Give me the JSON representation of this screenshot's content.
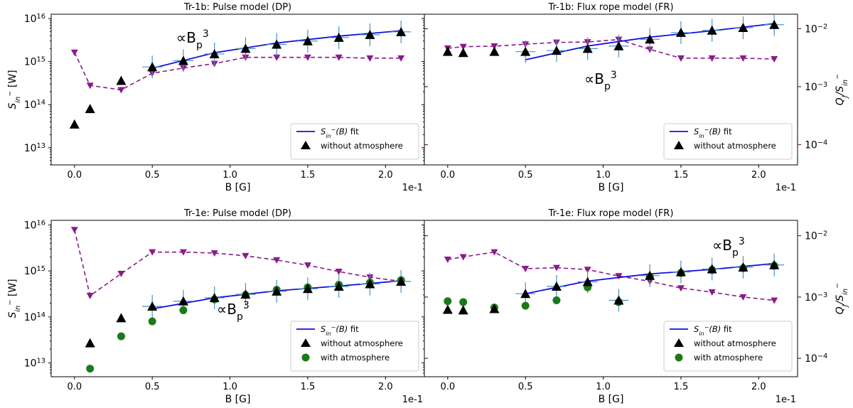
{
  "figure": {
    "colors": {
      "fit": "#1010dd",
      "triangle": "#000000",
      "circle": "#1a7a1a",
      "ratio": "#8b1a8b",
      "errorbar": "#4a90c8",
      "annotation": "#1010ee"
    },
    "shared": {
      "xlabel": "B [G]",
      "x_multiplier": "1e-1",
      "xlim": [
        -0.15,
        2.25
      ],
      "xticks": [
        "0.0",
        "0.5",
        "1.0",
        "1.5",
        "2.0"
      ],
      "ylabel_main": "S_in^- [W]",
      "ylabel_main_text": "S",
      "ylabel_main_sub": "in",
      "ylabel_main_sup": "−",
      "ylabel_main_unit": " [W]",
      "ylabel_right_text": "Q",
      "ylabel_right_sub_q": "J",
      "ylabel_right_mid": "/S",
      "ylabel_right_sub_s": "in",
      "ylabel_right_sup_s": "−",
      "left_yticks": [
        "10^13",
        "10^14",
        "10^15",
        "10^16"
      ],
      "right_yticks": [
        "10^-4",
        "10^-3",
        "10^-2"
      ],
      "tick_base": "10",
      "left_tick_exps": [
        "13",
        "14",
        "15",
        "16"
      ],
      "right_tick_exps": [
        "−4",
        "−3",
        "−2"
      ],
      "legend_fit_prefix": "S",
      "legend_fit_sub": "in",
      "legend_fit_sup": "−",
      "legend_fit_suffix": "(B) fit",
      "legend_without": "without atmosphere",
      "legend_with": "with atmosphere",
      "annotation_prefix": "∝B",
      "annotation_sub": "p",
      "annotation_sup": "3"
    }
  },
  "chart_data": [
    {
      "type": "scatter",
      "title": "Tr-1b: Pulse model (DP)",
      "ylim_left_log10": [
        12.6,
        16.1
      ],
      "ylim_right_log10": [
        -4.35,
        -1.75
      ],
      "x": [
        0.0,
        0.1,
        0.3,
        0.5,
        0.7,
        0.9,
        1.1,
        1.3,
        1.5,
        1.7,
        1.9,
        2.1
      ],
      "without_atmosphere": [
        35000000000000.0,
        80000000000000.0,
        360000000000000.0,
        750000000000000.0,
        1050000000000000.0,
        1500000000000000.0,
        2000000000000000.0,
        2500000000000000.0,
        3000000000000000.0,
        3600000000000000.0,
        4200000000000000.0,
        4900000000000000.0
      ],
      "fit": {
        "x": [
          0.5,
          2.1
        ],
        "points": [
          [
            0.5,
            700000000000000.0
          ],
          [
            0.9,
            1600000000000000.0
          ],
          [
            1.3,
            2700000000000000.0
          ],
          [
            1.7,
            3900000000000000.0
          ],
          [
            2.1,
            5200000000000000.0
          ]
        ]
      },
      "qj_ratio": [
        0.0039,
        0.00105,
        0.00088,
        0.0017,
        0.0021,
        0.0025,
        0.0032,
        0.0032,
        0.0032,
        0.0032,
        0.0031,
        0.0031
      ],
      "annotation": "upper-left"
    },
    {
      "type": "scatter",
      "title": "Tr-1b: Flux rope model (FR)",
      "ylim_left_log10": [
        12.6,
        16.1
      ],
      "ylim_right_log10": [
        -4.35,
        -1.75
      ],
      "x": [
        0.0,
        0.1,
        0.3,
        0.5,
        0.7,
        0.9,
        1.1,
        1.3,
        1.5,
        1.7,
        1.9,
        2.1
      ],
      "without_atmosphere": [
        1700000000000000.0,
        1600000000000000.0,
        1700000000000000.0,
        1700000000000000.0,
        1800000000000000.0,
        2000000000000000.0,
        2300000000000000.0,
        3300000000000000.0,
        4700000000000000.0,
        5300000000000000.0,
        6100000000000000.0,
        7200000000000000.0
      ],
      "fit": {
        "x": [
          0.5,
          2.1
        ],
        "points": [
          [
            0.5,
            1100000000000000.0
          ],
          [
            0.9,
            2300000000000000.0
          ],
          [
            1.3,
            3700000000000000.0
          ],
          [
            1.7,
            5200000000000000.0
          ],
          [
            2.1,
            7600000000000000.0
          ]
        ]
      },
      "qj_ratio": [
        0.0046,
        0.0049,
        0.005,
        0.0054,
        0.0058,
        0.0059,
        0.0065,
        0.0044,
        0.0031,
        0.0031,
        0.0031,
        0.003
      ],
      "annotation": "middle-center"
    },
    {
      "type": "scatter",
      "title": "Tr-1e: Pulse model (DP)",
      "ylim_left_log10": [
        12.7,
        16.1
      ],
      "ylim_right_log10": [
        -4.3,
        -1.75
      ],
      "x": [
        0.0,
        0.1,
        0.3,
        0.5,
        0.7,
        0.9,
        1.1,
        1.3,
        1.5,
        1.7,
        1.9,
        2.1
      ],
      "without_atmosphere": [
        null,
        27000000000000.0,
        95000000000000.0,
        170000000000000.0,
        220000000000000.0,
        260000000000000.0,
        310000000000000.0,
        360000000000000.0,
        410000000000000.0,
        460000000000000.0,
        520000000000000.0,
        590000000000000.0
      ],
      "with_atmosphere": [
        null,
        7500000000000.0,
        38000000000000.0,
        80000000000000.0,
        140000000000000.0,
        240000000000000.0,
        300000000000000.0,
        390000000000000.0,
        440000000000000.0,
        500000000000000.0,
        560000000000000.0,
        630000000000000.0
      ],
      "fit": {
        "x": [
          0.5,
          2.1
        ],
        "points": [
          [
            0.5,
            150000000000000.0
          ],
          [
            0.9,
            260000000000000.0
          ],
          [
            1.3,
            370000000000000.0
          ],
          [
            1.7,
            470000000000000.0
          ],
          [
            2.1,
            610000000000000.0
          ]
        ]
      },
      "qj_ratio": [
        0.0125,
        0.00105,
        0.0024,
        0.0054,
        0.0054,
        0.0052,
        0.0047,
        0.004,
        0.0033,
        0.0026,
        0.0021,
        0.0018
      ],
      "annotation": "lower-center"
    },
    {
      "type": "scatter",
      "title": "Tr-1e: Flux rope model (FR)",
      "ylim_left_log10": [
        12.7,
        16.1
      ],
      "ylim_right_log10": [
        -4.3,
        -1.75
      ],
      "x": [
        0.0,
        0.1,
        0.3,
        0.5,
        0.7,
        0.9,
        1.1,
        1.3,
        1.5,
        1.7,
        1.9,
        2.1
      ],
      "without_atmosphere": [
        145000000000000.0,
        140000000000000.0,
        150000000000000.0,
        320000000000000.0,
        460000000000000.0,
        580000000000000.0,
        230000000000000.0,
        790000000000000.0,
        950000000000000.0,
        1100000000000000.0,
        1200000000000000.0,
        1350000000000000.0
      ],
      "with_atmosphere": [
        220000000000000.0,
        210000000000000.0,
        160000000000000.0,
        175000000000000.0,
        230000000000000.0,
        440000000000000.0,
        210000000000000.0,
        750000000000000.0,
        900000000000000.0,
        1050000000000000.0,
        1150000000000000.0,
        1300000000000000.0
      ],
      "fit": {
        "x": [
          0.5,
          2.1
        ],
        "points": [
          [
            0.5,
            320000000000000.0
          ],
          [
            0.9,
            600000000000000.0
          ],
          [
            1.3,
            860000000000000.0
          ],
          [
            1.7,
            1080000000000000.0
          ],
          [
            2.1,
            1450000000000000.0
          ]
        ]
      },
      "qj_ratio": [
        0.0041,
        0.0045,
        0.0054,
        0.0029,
        0.003,
        0.0028,
        0.0022,
        0.0018,
        0.0014,
        0.0012,
        0.001,
        0.00088
      ],
      "annotation": "upper-right"
    }
  ]
}
